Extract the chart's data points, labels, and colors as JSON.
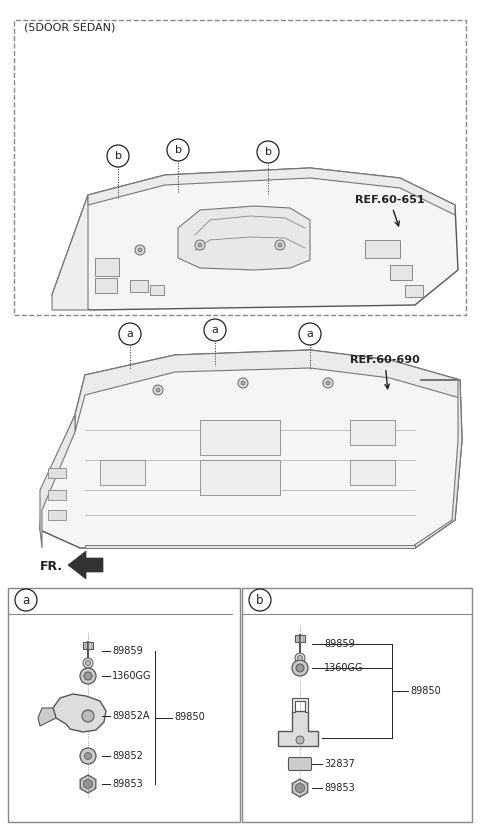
{
  "bg_color": "#ffffff",
  "text_color": "#222222",
  "line_color": "#555555",
  "fig_width": 4.8,
  "fig_height": 8.34,
  "dpi": 100,
  "top_box_label": "(5DOOR SEDAN)",
  "ref1": "REF.60-651",
  "ref2": "REF.60-690",
  "fr_label": "FR.",
  "label_a": "a",
  "label_b": "b"
}
